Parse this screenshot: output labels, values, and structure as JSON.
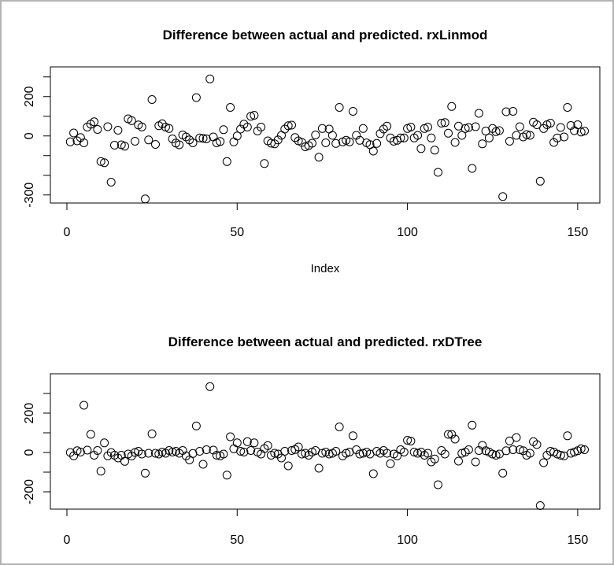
{
  "window": {
    "background_color": "#ffffff",
    "border_color": "#b4b4b4",
    "foreground_color": "#000000"
  },
  "chart_data": [
    {
      "type": "scatter",
      "title": "Difference between actual and predicted. rxLinmod",
      "xlabel": "Index",
      "ylabel": "",
      "marker": "open-circle",
      "grid": false,
      "legend": "none",
      "xlim": [
        -4.85,
        156.5
      ],
      "ylim": [
        -341,
        351
      ],
      "xticks": [
        {
          "v": 0,
          "label": "0"
        },
        {
          "v": 50,
          "label": "50"
        },
        {
          "v": 100,
          "label": "100"
        },
        {
          "v": 150,
          "label": "150"
        }
      ],
      "yticks": [
        {
          "v": 300,
          "label": ""
        },
        {
          "v": 200,
          "label": "200"
        },
        {
          "v": 100,
          "label": ""
        },
        {
          "v": 0,
          "label": "0"
        },
        {
          "v": -100,
          "label": ""
        },
        {
          "v": -200,
          "label": ""
        },
        {
          "v": -300,
          "label": "-300"
        }
      ],
      "points": [
        [
          1,
          -30
        ],
        [
          2,
          15
        ],
        [
          3,
          -25
        ],
        [
          4,
          -8
        ],
        [
          5,
          -35
        ],
        [
          6,
          45
        ],
        [
          7,
          60
        ],
        [
          8,
          72
        ],
        [
          9,
          33
        ],
        [
          10,
          -130
        ],
        [
          11,
          -136
        ],
        [
          12,
          47
        ],
        [
          13,
          -235
        ],
        [
          14,
          -47
        ],
        [
          15,
          29
        ],
        [
          16,
          -45
        ],
        [
          17,
          -52
        ],
        [
          18,
          87
        ],
        [
          19,
          78
        ],
        [
          20,
          -27
        ],
        [
          21,
          56
        ],
        [
          22,
          46
        ],
        [
          23,
          -320
        ],
        [
          24,
          -20
        ],
        [
          25,
          185
        ],
        [
          26,
          -43
        ],
        [
          27,
          52
        ],
        [
          28,
          62
        ],
        [
          29,
          45
        ],
        [
          30,
          38
        ],
        [
          31,
          -15
        ],
        [
          32,
          -36
        ],
        [
          33,
          -45
        ],
        [
          34,
          5
        ],
        [
          35,
          -5
        ],
        [
          36,
          -20
        ],
        [
          37,
          -35
        ],
        [
          38,
          195
        ],
        [
          39,
          -10
        ],
        [
          40,
          -12
        ],
        [
          41,
          -15
        ],
        [
          42,
          290
        ],
        [
          43,
          -5
        ],
        [
          44,
          -35
        ],
        [
          45,
          -28
        ],
        [
          46,
          32
        ],
        [
          47,
          -130
        ],
        [
          48,
          145
        ],
        [
          49,
          -30
        ],
        [
          50,
          0
        ],
        [
          51,
          35
        ],
        [
          52,
          60
        ],
        [
          53,
          45
        ],
        [
          54,
          100
        ],
        [
          55,
          105
        ],
        [
          56,
          25
        ],
        [
          57,
          45
        ],
        [
          58,
          -140
        ],
        [
          59,
          -25
        ],
        [
          60,
          -37
        ],
        [
          61,
          -40
        ],
        [
          62,
          -20
        ],
        [
          63,
          3
        ],
        [
          64,
          35
        ],
        [
          65,
          52
        ],
        [
          66,
          55
        ],
        [
          67,
          -8
        ],
        [
          68,
          -25
        ],
        [
          69,
          -33
        ],
        [
          70,
          -55
        ],
        [
          71,
          -49
        ],
        [
          72,
          -37
        ],
        [
          73,
          5
        ],
        [
          74,
          -108
        ],
        [
          75,
          38
        ],
        [
          76,
          -35
        ],
        [
          77,
          35
        ],
        [
          78,
          3
        ],
        [
          79,
          -38
        ],
        [
          80,
          145
        ],
        [
          81,
          -30
        ],
        [
          82,
          -22
        ],
        [
          83,
          -30
        ],
        [
          84,
          125
        ],
        [
          85,
          3
        ],
        [
          86,
          -22
        ],
        [
          87,
          38
        ],
        [
          88,
          -35
        ],
        [
          89,
          -44
        ],
        [
          90,
          -77
        ],
        [
          91,
          -38
        ],
        [
          92,
          12
        ],
        [
          93,
          35
        ],
        [
          94,
          50
        ],
        [
          95,
          -10
        ],
        [
          96,
          -27
        ],
        [
          97,
          -22
        ],
        [
          98,
          -10
        ],
        [
          99,
          -10
        ],
        [
          100,
          38
        ],
        [
          101,
          45
        ],
        [
          102,
          -10
        ],
        [
          103,
          3
        ],
        [
          104,
          -64
        ],
        [
          105,
          38
        ],
        [
          106,
          45
        ],
        [
          107,
          -10
        ],
        [
          108,
          -72
        ],
        [
          109,
          -185
        ],
        [
          110,
          65
        ],
        [
          111,
          68
        ],
        [
          112,
          14
        ],
        [
          113,
          150
        ],
        [
          114,
          -33
        ],
        [
          115,
          50
        ],
        [
          116,
          3
        ],
        [
          117,
          38
        ],
        [
          118,
          43
        ],
        [
          119,
          -165
        ],
        [
          120,
          47
        ],
        [
          121,
          115
        ],
        [
          122,
          -40
        ],
        [
          123,
          25
        ],
        [
          124,
          -10
        ],
        [
          125,
          38
        ],
        [
          126,
          22
        ],
        [
          127,
          27
        ],
        [
          128,
          -308
        ],
        [
          129,
          123
        ],
        [
          130,
          -27
        ],
        [
          131,
          125
        ],
        [
          132,
          3
        ],
        [
          133,
          47
        ],
        [
          134,
          -5
        ],
        [
          135,
          7
        ],
        [
          136,
          3
        ],
        [
          137,
          70
        ],
        [
          138,
          57
        ],
        [
          139,
          -230
        ],
        [
          140,
          38
        ],
        [
          141,
          57
        ],
        [
          142,
          65
        ],
        [
          143,
          -33
        ],
        [
          144,
          -10
        ],
        [
          145,
          43
        ],
        [
          146,
          -5
        ],
        [
          147,
          145
        ],
        [
          148,
          53
        ],
        [
          149,
          27
        ],
        [
          150,
          57
        ],
        [
          151,
          20
        ],
        [
          152,
          25
        ]
      ]
    },
    {
      "type": "scatter",
      "title": "Difference between actual and predicted. rxDTree",
      "xlabel": "",
      "ylabel": "",
      "marker": "open-circle",
      "grid": false,
      "legend": "none",
      "xlim": [
        -4.85,
        156.5
      ],
      "ylim": [
        -288,
        400
      ],
      "xticks": [
        {
          "v": 0,
          "label": "0"
        },
        {
          "v": 50,
          "label": "50"
        },
        {
          "v": 100,
          "label": "100"
        },
        {
          "v": 150,
          "label": "150"
        }
      ],
      "yticks": [
        {
          "v": 300,
          "label": ""
        },
        {
          "v": 200,
          "label": "200"
        },
        {
          "v": 100,
          "label": ""
        },
        {
          "v": 0,
          "label": "0"
        },
        {
          "v": -100,
          "label": ""
        },
        {
          "v": -200,
          "label": "-200"
        }
      ],
      "points": [
        [
          1,
          0
        ],
        [
          2,
          -17
        ],
        [
          3,
          9
        ],
        [
          4,
          2
        ],
        [
          5,
          240
        ],
        [
          6,
          12
        ],
        [
          7,
          92
        ],
        [
          8,
          -14
        ],
        [
          9,
          10
        ],
        [
          10,
          -95
        ],
        [
          11,
          49
        ],
        [
          12,
          -17
        ],
        [
          13,
          0
        ],
        [
          14,
          -14
        ],
        [
          15,
          -28
        ],
        [
          16,
          -14
        ],
        [
          17,
          -45
        ],
        [
          18,
          -8
        ],
        [
          19,
          -18
        ],
        [
          20,
          0
        ],
        [
          21,
          6
        ],
        [
          22,
          -8
        ],
        [
          23,
          -105
        ],
        [
          24,
          -4
        ],
        [
          25,
          95
        ],
        [
          26,
          -4
        ],
        [
          27,
          -8
        ],
        [
          28,
          2
        ],
        [
          29,
          -4
        ],
        [
          30,
          10
        ],
        [
          31,
          2
        ],
        [
          32,
          6
        ],
        [
          33,
          -4
        ],
        [
          34,
          10
        ],
        [
          35,
          -17
        ],
        [
          36,
          -38
        ],
        [
          37,
          -5
        ],
        [
          38,
          135
        ],
        [
          39,
          6
        ],
        [
          40,
          -60
        ],
        [
          41,
          14
        ],
        [
          42,
          335
        ],
        [
          43,
          12
        ],
        [
          44,
          -14
        ],
        [
          45,
          -17
        ],
        [
          46,
          -8
        ],
        [
          47,
          -115
        ],
        [
          48,
          80
        ],
        [
          49,
          19
        ],
        [
          50,
          49
        ],
        [
          51,
          6
        ],
        [
          52,
          2
        ],
        [
          53,
          55
        ],
        [
          54,
          10
        ],
        [
          55,
          49
        ],
        [
          56,
          2
        ],
        [
          57,
          -8
        ],
        [
          58,
          20
        ],
        [
          59,
          35
        ],
        [
          60,
          -14
        ],
        [
          61,
          -4
        ],
        [
          62,
          -8
        ],
        [
          63,
          -28
        ],
        [
          64,
          6
        ],
        [
          65,
          -68
        ],
        [
          66,
          10
        ],
        [
          67,
          15
        ],
        [
          68,
          28
        ],
        [
          69,
          -8
        ],
        [
          70,
          -4
        ],
        [
          71,
          -14
        ],
        [
          72,
          2
        ],
        [
          73,
          10
        ],
        [
          74,
          -80
        ],
        [
          75,
          -4
        ],
        [
          76,
          2
        ],
        [
          77,
          -8
        ],
        [
          78,
          -4
        ],
        [
          79,
          6
        ],
        [
          80,
          130
        ],
        [
          81,
          -17
        ],
        [
          82,
          -4
        ],
        [
          83,
          2
        ],
        [
          84,
          85
        ],
        [
          85,
          14
        ],
        [
          86,
          -8
        ],
        [
          87,
          -4
        ],
        [
          88,
          2
        ],
        [
          89,
          -8
        ],
        [
          90,
          -108
        ],
        [
          91,
          6
        ],
        [
          92,
          -4
        ],
        [
          93,
          10
        ],
        [
          94,
          -4
        ],
        [
          95,
          -57
        ],
        [
          96,
          -8
        ],
        [
          97,
          -17
        ],
        [
          98,
          14
        ],
        [
          99,
          2
        ],
        [
          100,
          62
        ],
        [
          101,
          58
        ],
        [
          102,
          2
        ],
        [
          103,
          -4
        ],
        [
          104,
          2
        ],
        [
          105,
          -14
        ],
        [
          106,
          -4
        ],
        [
          107,
          -48
        ],
        [
          108,
          -33
        ],
        [
          109,
          -164
        ],
        [
          110,
          10
        ],
        [
          111,
          -8
        ],
        [
          112,
          92
        ],
        [
          113,
          92
        ],
        [
          114,
          68
        ],
        [
          115,
          -44
        ],
        [
          116,
          -4
        ],
        [
          117,
          2
        ],
        [
          118,
          14
        ],
        [
          119,
          139
        ],
        [
          120,
          -48
        ],
        [
          121,
          10
        ],
        [
          122,
          36
        ],
        [
          123,
          9
        ],
        [
          124,
          2
        ],
        [
          125,
          -8
        ],
        [
          126,
          -14
        ],
        [
          127,
          -8
        ],
        [
          128,
          -105
        ],
        [
          129,
          9
        ],
        [
          130,
          59
        ],
        [
          131,
          14
        ],
        [
          132,
          76
        ],
        [
          133,
          14
        ],
        [
          134,
          9
        ],
        [
          135,
          -14
        ],
        [
          136,
          -4
        ],
        [
          137,
          55
        ],
        [
          138,
          40
        ],
        [
          139,
          -270
        ],
        [
          140,
          -52
        ],
        [
          141,
          -14
        ],
        [
          142,
          6
        ],
        [
          143,
          2
        ],
        [
          144,
          -8
        ],
        [
          145,
          -14
        ],
        [
          146,
          -17
        ],
        [
          147,
          85
        ],
        [
          148,
          -4
        ],
        [
          149,
          2
        ],
        [
          150,
          9
        ],
        [
          151,
          19
        ],
        [
          152,
          14
        ]
      ]
    }
  ]
}
